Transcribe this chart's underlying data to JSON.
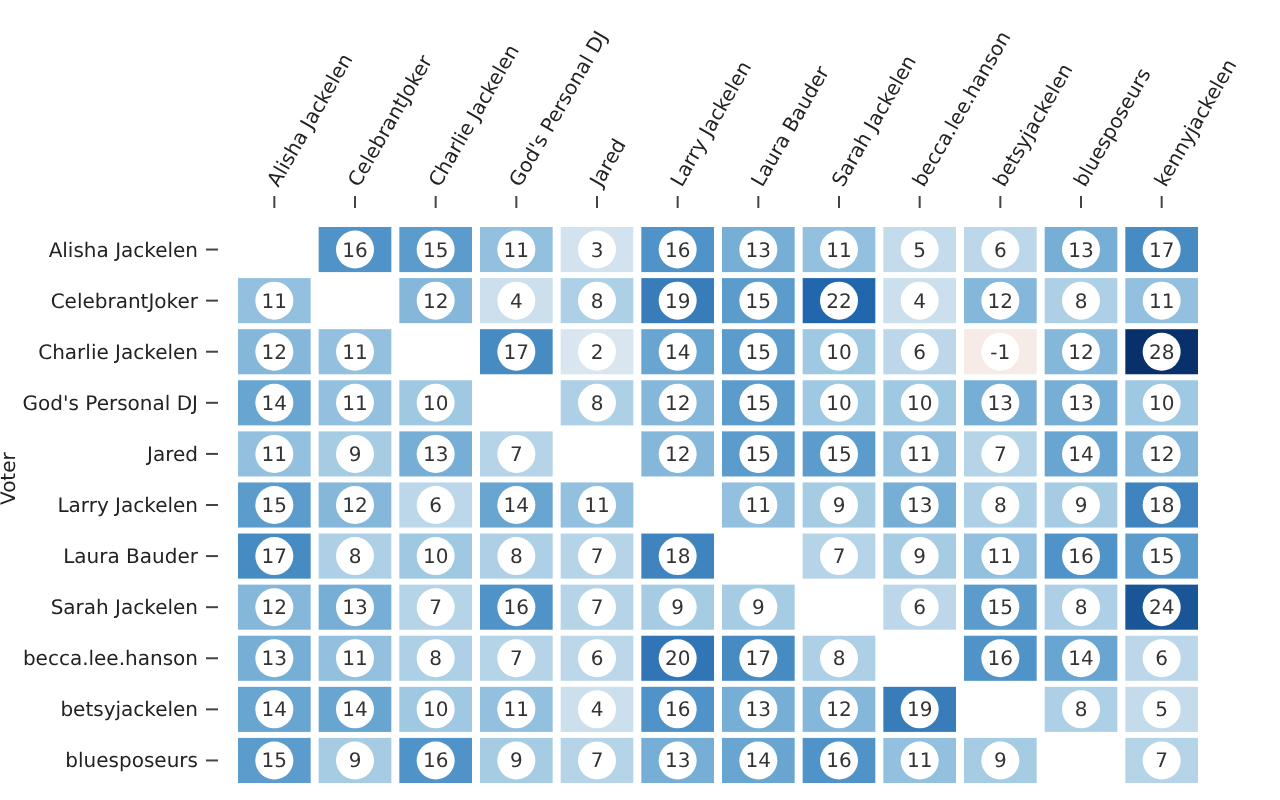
{
  "chart_data": {
    "type": "heatmap",
    "ylabel": "Voter",
    "data_labels": true,
    "categories": [
      "Alisha Jackelen",
      "CelebrantJoker",
      "Charlie Jackelen",
      "God's Personal DJ",
      "Jared",
      "Larry Jackelen",
      "Laura Bauder",
      "Sarah Jackelen",
      "becca.lee.hanson",
      "betsyjackelen",
      "bluesposeurs",
      "kennyjackelen"
    ],
    "y_categories": [
      "Alisha Jackelen",
      "CelebrantJoker",
      "Charlie Jackelen",
      "God's Personal DJ",
      "Jared",
      "Larry Jackelen",
      "Laura Bauder",
      "Sarah Jackelen",
      "becca.lee.hanson",
      "betsyjackelen",
      "bluesposeurs"
    ],
    "cells": [
      [
        null,
        16,
        15,
        11,
        3,
        16,
        13,
        11,
        5,
        6,
        13,
        17
      ],
      [
        11,
        null,
        12,
        4,
        8,
        19,
        15,
        22,
        4,
        12,
        8,
        11
      ],
      [
        12,
        11,
        null,
        17,
        2,
        14,
        15,
        10,
        6,
        -1,
        12,
        28
      ],
      [
        14,
        11,
        10,
        null,
        8,
        12,
        15,
        10,
        10,
        13,
        13,
        10
      ],
      [
        11,
        9,
        13,
        7,
        null,
        12,
        15,
        15,
        11,
        7,
        14,
        12
      ],
      [
        15,
        12,
        6,
        14,
        11,
        null,
        11,
        9,
        13,
        8,
        9,
        18
      ],
      [
        17,
        8,
        10,
        8,
        7,
        18,
        null,
        7,
        9,
        11,
        16,
        15
      ],
      [
        12,
        13,
        7,
        16,
        7,
        9,
        9,
        null,
        6,
        15,
        8,
        24
      ],
      [
        13,
        11,
        8,
        7,
        6,
        20,
        17,
        8,
        null,
        16,
        14,
        6
      ],
      [
        14,
        14,
        10,
        11,
        4,
        16,
        13,
        12,
        19,
        null,
        8,
        5
      ],
      [
        15,
        9,
        16,
        9,
        7,
        13,
        14,
        16,
        11,
        9,
        null,
        7
      ]
    ]
  }
}
